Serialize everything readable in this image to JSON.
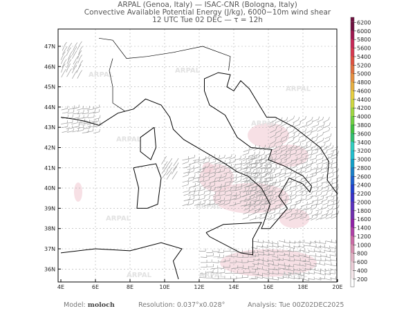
{
  "header": {
    "line1": "ARPAL (Genoa, Italy)  —  ISAC-CNR (Bologna, Italy)",
    "line2": "Convective Available Potential Energy (J/kg), 6000−10m wind shear",
    "line3": "12 UTC Tue 02 DEC  —  τ = 12h"
  },
  "map": {
    "lat_labels": [
      "47N",
      "46N",
      "45N",
      "44N",
      "43N",
      "42N",
      "41N",
      "40N",
      "39N",
      "38N",
      "37N",
      "36N"
    ],
    "lon_labels": [
      "4E",
      "6E",
      "8E",
      "10E",
      "12E",
      "14E",
      "16E",
      "18E",
      "20E"
    ],
    "watermark": "ARPAL",
    "land_color": "#ffffff",
    "coast_color": "#000000",
    "barb_color": "#999999",
    "cape_shading_color": "#f3d3da"
  },
  "colorbar": {
    "levels": [
      "200",
      "400",
      "600",
      "800",
      "1000",
      "1200",
      "1400",
      "1600",
      "1800",
      "2000",
      "2200",
      "2400",
      "2600",
      "2800",
      "3000",
      "3200",
      "3400",
      "3600",
      "3800",
      "4000",
      "4200",
      "4400",
      "4600",
      "4800",
      "5000",
      "5200",
      "5400",
      "5600",
      "5800",
      "6000",
      "6200"
    ],
    "colors": [
      "#ffffff",
      "#f4e6ea",
      "#eccfd8",
      "#e2b3c4",
      "#d890b0",
      "#cc6aa6",
      "#b040a8",
      "#9020a8",
      "#7030b0",
      "#5a30c0",
      "#3a30c8",
      "#2040d0",
      "#1c60d0",
      "#1880c8",
      "#10a0c8",
      "#20c0d0",
      "#30d0c0",
      "#30c070",
      "#40c040",
      "#70d040",
      "#a0d840",
      "#d0d840",
      "#e8d040",
      "#e8b040",
      "#e89040",
      "#e07040",
      "#e05040",
      "#d83850",
      "#c82858",
      "#a01850",
      "#701040"
    ]
  },
  "footer": {
    "model_label": "Model:",
    "model_value": "moloch",
    "resolution": "Resolution: 0.037°x0.028°",
    "analysis": "Analysis: Tue 00Z02DEC2025"
  }
}
